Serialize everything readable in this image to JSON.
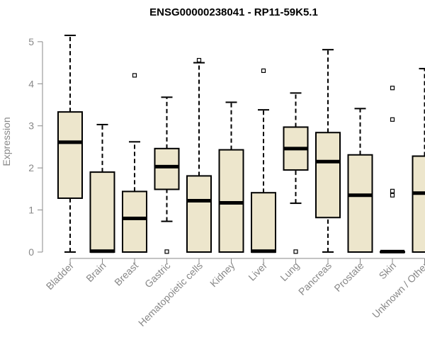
{
  "chart_data": {
    "type": "boxplot",
    "title": "ENSG00000238041 - RP11-59K5.1",
    "xlabel": "",
    "ylabel": "Expression",
    "ylim": [
      0,
      5.2
    ],
    "yticks": [
      0,
      1,
      2,
      3,
      4,
      5
    ],
    "categories": [
      "Bladder",
      "Brain",
      "Breast",
      "Gastric",
      "Hematopoietic cells",
      "Kidney",
      "Liver",
      "Lung",
      "Pancreas",
      "Prostate",
      "Skin",
      "Unknown / Other"
    ],
    "boxes": [
      {
        "min": 0,
        "q1": 1.28,
        "median": 2.61,
        "q3": 3.33,
        "max": 5.15,
        "outliers": []
      },
      {
        "min": 0,
        "q1": 0,
        "median": 0.02,
        "q3": 1.9,
        "max": 3.03,
        "outliers": []
      },
      {
        "min": 0,
        "q1": 0,
        "median": 0.8,
        "q3": 1.44,
        "max": 2.62,
        "outliers": [
          4.2
        ]
      },
      {
        "min": 0.73,
        "q1": 1.49,
        "median": 2.03,
        "q3": 2.46,
        "max": 3.68,
        "outliers": [
          0.01
        ]
      },
      {
        "min": 0,
        "q1": 0,
        "median": 1.22,
        "q3": 1.81,
        "max": 4.5,
        "outliers": [
          4.56
        ]
      },
      {
        "min": 0,
        "q1": 0,
        "median": 1.17,
        "q3": 2.43,
        "max": 3.56,
        "outliers": []
      },
      {
        "min": 0,
        "q1": 0,
        "median": 0.02,
        "q3": 1.41,
        "max": 3.38,
        "outliers": [
          4.31
        ]
      },
      {
        "min": 1.16,
        "q1": 1.95,
        "median": 2.46,
        "q3": 2.97,
        "max": 3.78,
        "outliers": [
          0.01
        ]
      },
      {
        "min": 0,
        "q1": 0.82,
        "median": 2.15,
        "q3": 2.84,
        "max": 4.81,
        "outliers": []
      },
      {
        "min": 0,
        "q1": 0,
        "median": 1.35,
        "q3": 2.31,
        "max": 3.41,
        "outliers": []
      },
      {
        "min": 0,
        "q1": 0,
        "median": 0.01,
        "q3": 0.01,
        "max": 0.01,
        "outliers": [
          1.35,
          1.45,
          3.15,
          3.9
        ]
      },
      {
        "min": 0,
        "q1": 0,
        "median": 1.4,
        "q3": 2.28,
        "max": 4.36,
        "outliers": []
      }
    ],
    "box_fill": "#ede6cc",
    "axis_color": "#888888"
  }
}
